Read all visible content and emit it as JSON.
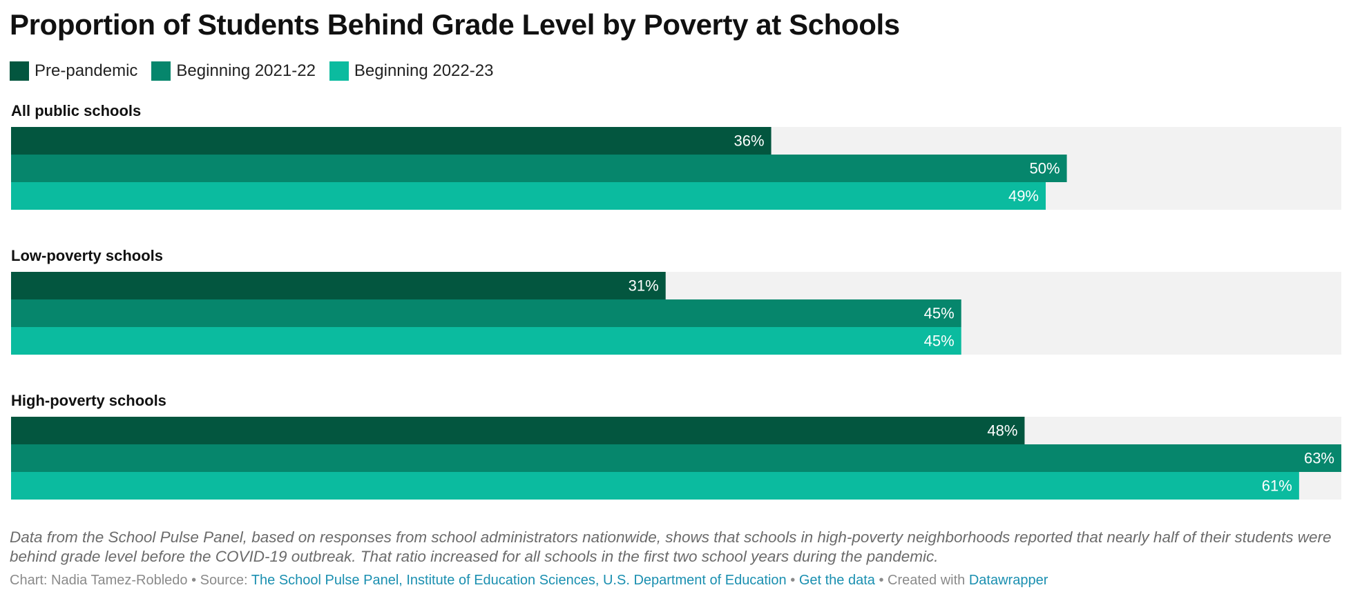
{
  "chart_data": {
    "type": "bar",
    "orientation": "horizontal-grouped",
    "title": "Proportion of Students Behind Grade Level by Poverty at Schools",
    "categories": [
      "All public schools",
      "Low-poverty schools",
      "High-poverty schools"
    ],
    "series": [
      {
        "name": "Pre-pandemic",
        "color": "#03563f",
        "values": [
          36,
          31,
          48
        ],
        "labels": [
          "36%",
          "31%",
          "48%"
        ]
      },
      {
        "name": "Beginning 2021-22",
        "color": "#06866c",
        "values": [
          50,
          45,
          63
        ],
        "labels": [
          "50%",
          "45%",
          "63%"
        ]
      },
      {
        "name": "Beginning 2022-23",
        "color": "#0bbb9f",
        "values": [
          49,
          45,
          61
        ],
        "labels": [
          "49%",
          "45%",
          "61%"
        ]
      }
    ],
    "xlim": [
      0,
      63
    ],
    "unit": "%",
    "background_track_color": "#f2f2f2",
    "legend_position": "top-left"
  },
  "note": "Data from the School Pulse Panel, based on responses from school administrators nationwide, shows that schools in high-poverty neighborhoods reported that nearly half of their students were behind grade level before the COVID-19 outbreak. That ratio increased for all schools in the first two school years during the pandemic.",
  "footer": {
    "chart_label": "Chart: Nadia Tamez-Robledo",
    "separator": " • ",
    "source_label": "Source: ",
    "source_link": "The School Pulse Panel, Institute of Education Sciences, U.S. Department of Education",
    "get_data": "Get the data",
    "created_with": "Created with ",
    "tool": "Datawrapper"
  }
}
